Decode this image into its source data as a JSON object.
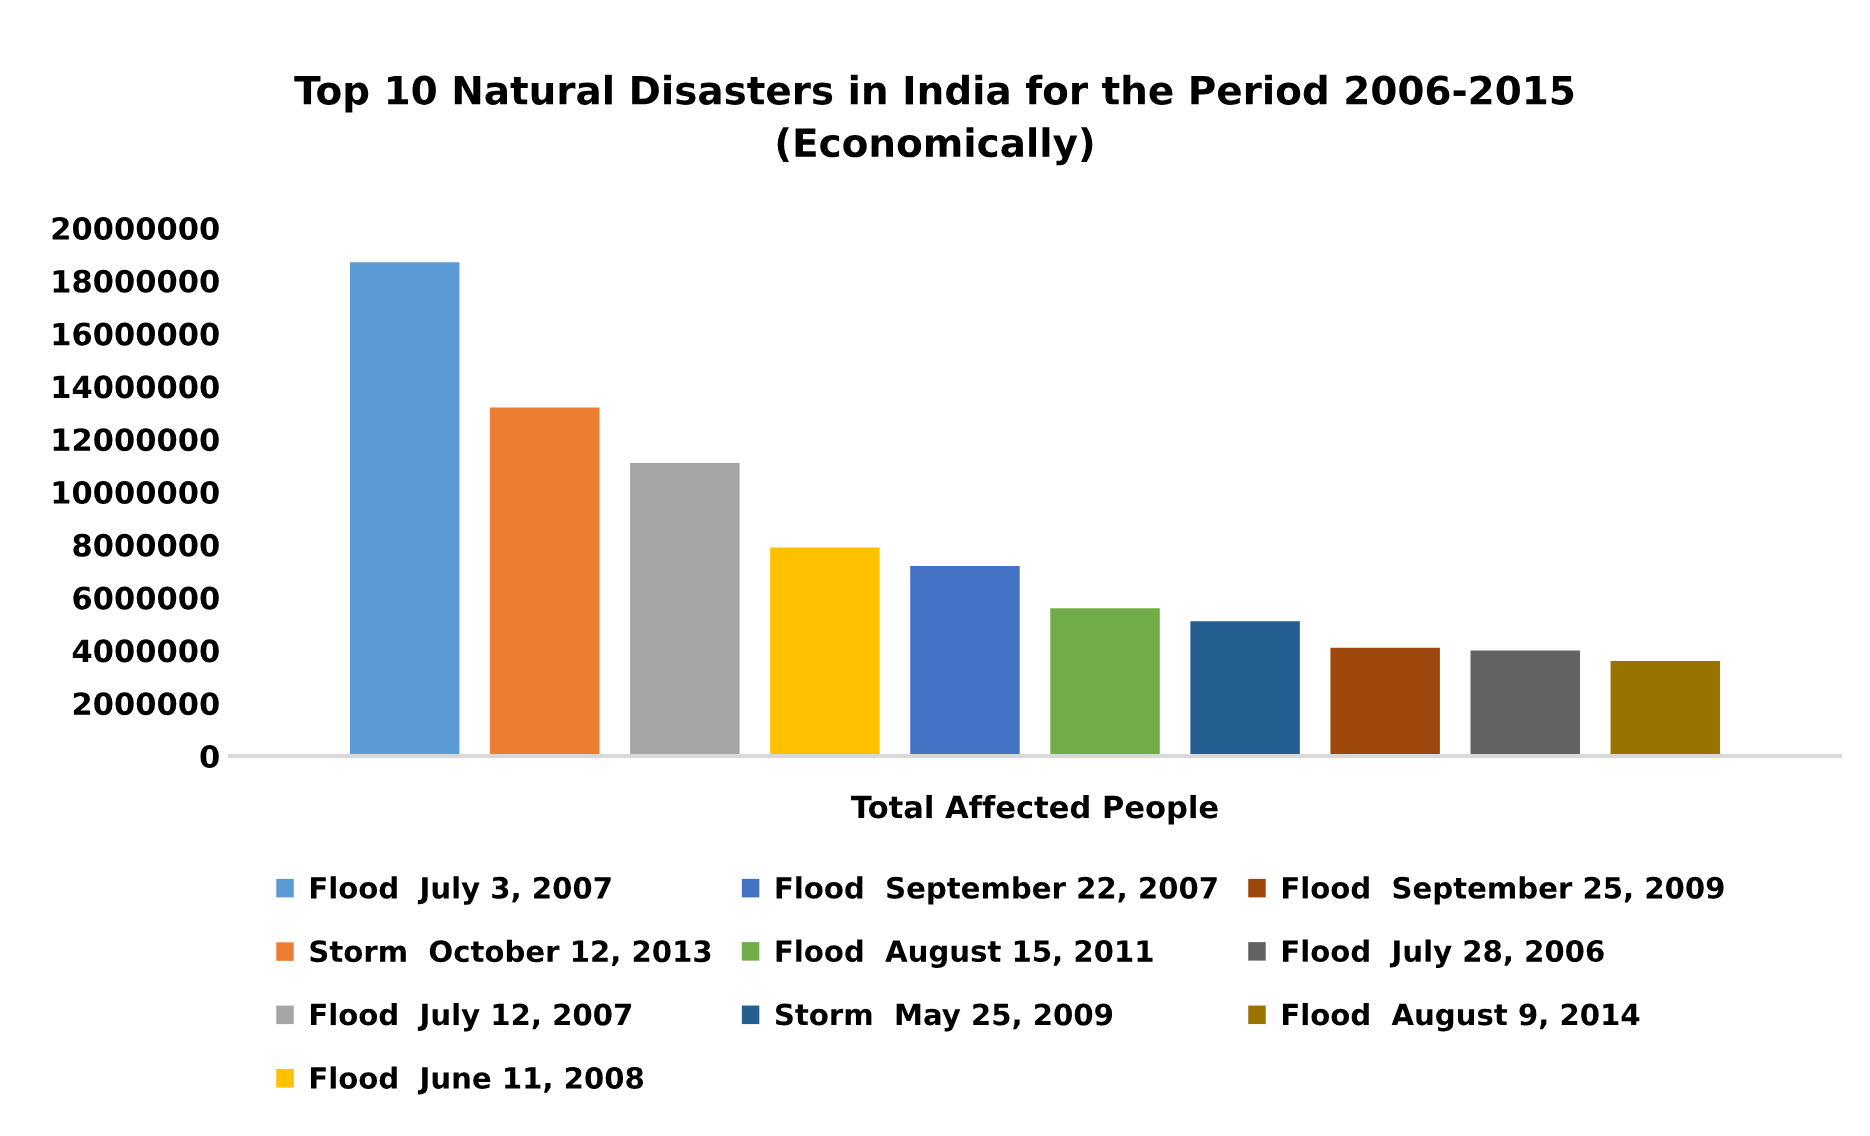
{
  "chart_data": {
    "type": "bar",
    "title": "Top 10 Natural Disasters in India for the Period 2006-2015\n(Economically)",
    "categories": [
      "Total Affected People"
    ],
    "series": [
      {
        "name": "Flood  July 3, 2007",
        "color": "#5b9bd5",
        "values": [
          18700000
        ]
      },
      {
        "name": "Storm  October 12, 2013",
        "color": "#ed7d31",
        "values": [
          13200000
        ]
      },
      {
        "name": "Flood  July 12, 2007",
        "color": "#a5a5a5",
        "values": [
          11100000
        ]
      },
      {
        "name": "Flood  June 11, 2008",
        "color": "#ffc000",
        "values": [
          7900000
        ]
      },
      {
        "name": "Flood  September 22, 2007",
        "color": "#4472c4",
        "values": [
          7200000
        ]
      },
      {
        "name": "Flood  August 15, 2011",
        "color": "#70ad47",
        "values": [
          5600000
        ]
      },
      {
        "name": "Storm  May 25, 2009",
        "color": "#255e91",
        "values": [
          5100000
        ]
      },
      {
        "name": "Flood  September 25, 2009",
        "color": "#9e480e",
        "values": [
          4100000
        ]
      },
      {
        "name": "Flood  July 28, 2006",
        "color": "#636363",
        "values": [
          4000000
        ]
      },
      {
        "name": "Flood  August 9, 2014",
        "color": "#997300",
        "values": [
          3600000
        ]
      }
    ],
    "ylim": [
      0,
      20000000
    ],
    "yticks": [
      0,
      2000000,
      4000000,
      6000000,
      8000000,
      10000000,
      12000000,
      14000000,
      16000000,
      18000000,
      20000000
    ],
    "grid": false,
    "legend": "bottom"
  }
}
